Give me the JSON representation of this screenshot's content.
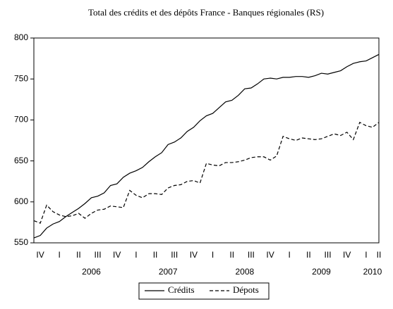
{
  "chart_data": {
    "type": "line",
    "title": "Total des crédits et des dépôts France - Banques régionales (RS)",
    "categories": [
      null,
      "IV",
      null,
      null,
      "I",
      null,
      null,
      "II",
      null,
      null,
      "III",
      null,
      null,
      "IV",
      null,
      null,
      "I",
      null,
      null,
      "II",
      null,
      null,
      "III",
      null,
      null,
      "IV",
      null,
      null,
      "I",
      null,
      null,
      "II",
      null,
      null,
      "III",
      null,
      null,
      "IV",
      null,
      null,
      "I",
      null,
      null,
      "II",
      null,
      null,
      "III",
      null,
      null,
      "IV",
      null,
      null,
      "I",
      null,
      "II"
    ],
    "year_categories": [
      null,
      null,
      null,
      null,
      null,
      null,
      null,
      null,
      null,
      "2006",
      null,
      null,
      null,
      null,
      null,
      null,
      null,
      null,
      null,
      null,
      null,
      "2007",
      null,
      null,
      null,
      null,
      null,
      null,
      null,
      null,
      null,
      null,
      null,
      "2008",
      null,
      null,
      null,
      null,
      null,
      null,
      null,
      null,
      null,
      null,
      null,
      "2009",
      null,
      null,
      null,
      null,
      null,
      null,
      null,
      "2010",
      null
    ],
    "series": [
      {
        "name": "Crédits",
        "color": "#000000",
        "dash": "solid",
        "values": [
          556,
          559,
          568,
          573,
          576,
          582,
          587,
          592,
          598,
          605,
          607,
          611,
          620,
          622,
          630,
          635,
          638,
          642,
          649,
          655,
          660,
          670,
          673,
          678,
          686,
          691,
          699,
          705,
          708,
          715,
          722,
          724,
          730,
          738,
          739,
          744,
          750,
          751,
          750,
          752,
          752,
          753,
          753,
          752,
          754,
          757,
          756,
          758,
          760,
          765,
          769,
          771,
          772,
          776,
          780
        ]
      },
      {
        "name": "Dépots",
        "color": "#000000",
        "dash": "dashed",
        "values": [
          577,
          574,
          596,
          588,
          584,
          582,
          583,
          586,
          580,
          586,
          590,
          591,
          595,
          594,
          593,
          614,
          608,
          605,
          610,
          610,
          609,
          617,
          620,
          621,
          625,
          626,
          623,
          647,
          645,
          644,
          648,
          648,
          649,
          651,
          654,
          655,
          655,
          651,
          656,
          680,
          677,
          675,
          678,
          677,
          676,
          677,
          680,
          683,
          681,
          685,
          676,
          697,
          693,
          691,
          697
        ]
      }
    ],
    "ylim": [
      550,
      800
    ],
    "yticks": [
      550,
      600,
      650,
      700,
      750,
      800
    ],
    "legend": "bottom"
  }
}
